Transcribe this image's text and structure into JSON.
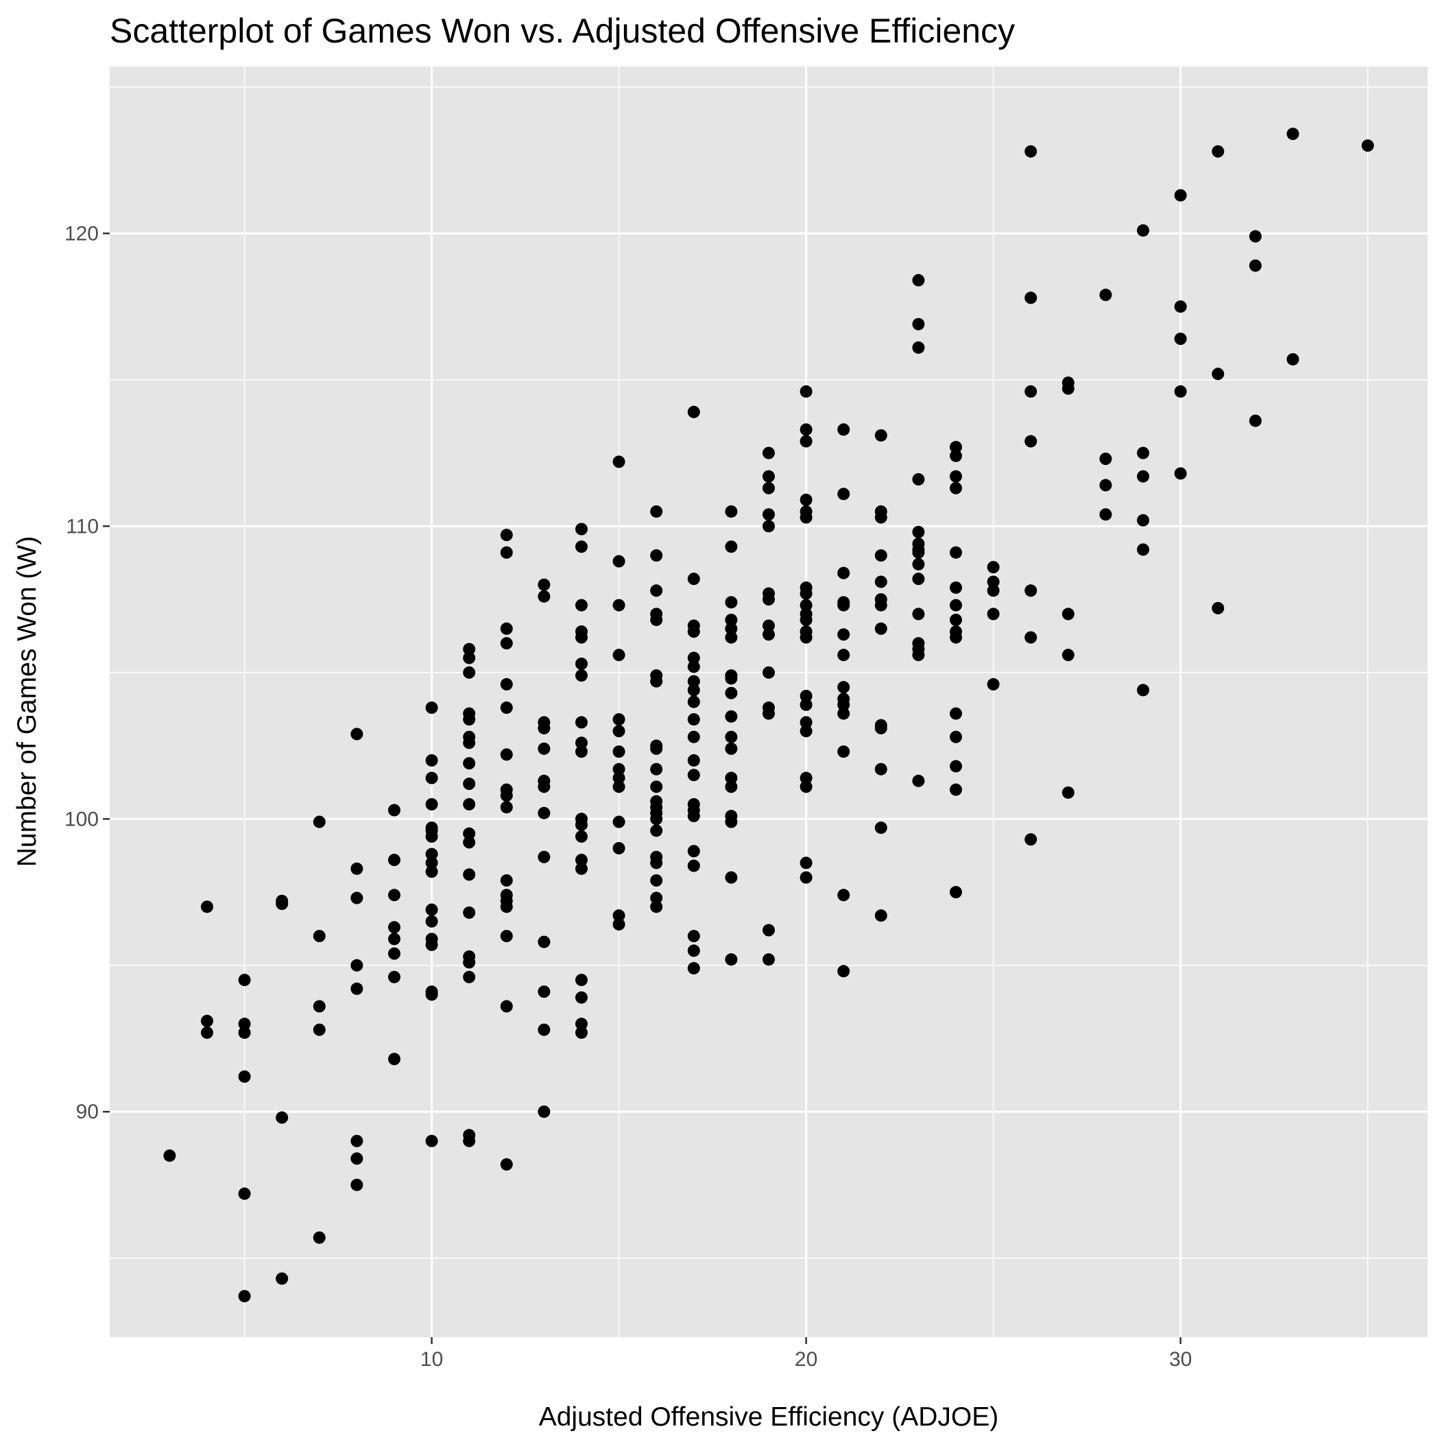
{
  "chart_data": {
    "type": "scatter",
    "title": "Scatterplot of Games Won vs. Adjusted Offensive Efficiency",
    "xlabel": "Adjusted Offensive Efficiency (ADJOE)",
    "ylabel": "Number of Games Won (W)",
    "xlim": [
      1.4,
      36.6
    ],
    "ylim": [
      82.3,
      125.7
    ],
    "x_ticks": [
      10,
      20,
      30
    ],
    "x_tick_labels": [
      "10",
      "20",
      "30"
    ],
    "y_ticks": [
      90,
      100,
      110,
      120
    ],
    "y_tick_labels": [
      "90",
      "100",
      "110",
      "120"
    ],
    "grid": true,
    "legend": "none",
    "colors": {
      "panel": "#e5e5e5",
      "grid": "#ffffff",
      "point": "#000000"
    },
    "points": [
      [
        3,
        88.5
      ],
      [
        4,
        97.0
      ],
      [
        4,
        93.1
      ],
      [
        4,
        92.7
      ],
      [
        5,
        94.5
      ],
      [
        5,
        93.0
      ],
      [
        5,
        92.7
      ],
      [
        5,
        91.2
      ],
      [
        5,
        87.2
      ],
      [
        5,
        83.7
      ],
      [
        6,
        97.2
      ],
      [
        6,
        97.1
      ],
      [
        6,
        89.8
      ],
      [
        6,
        84.3
      ],
      [
        7,
        99.9
      ],
      [
        7,
        96.0
      ],
      [
        7,
        93.6
      ],
      [
        7,
        92.8
      ],
      [
        7,
        85.7
      ],
      [
        8,
        102.9
      ],
      [
        8,
        98.3
      ],
      [
        8,
        97.3
      ],
      [
        8,
        95.0
      ],
      [
        8,
        94.2
      ],
      [
        8,
        89.0
      ],
      [
        8,
        88.4
      ],
      [
        8,
        87.5
      ],
      [
        9,
        100.3
      ],
      [
        9,
        98.6
      ],
      [
        9,
        97.4
      ],
      [
        9,
        96.3
      ],
      [
        9,
        95.9
      ],
      [
        9,
        95.4
      ],
      [
        9,
        94.6
      ],
      [
        9,
        91.8
      ],
      [
        10,
        103.8
      ],
      [
        10,
        102.0
      ],
      [
        10,
        101.4
      ],
      [
        10,
        100.5
      ],
      [
        10,
        99.7
      ],
      [
        10,
        99.6
      ],
      [
        10,
        99.4
      ],
      [
        10,
        98.8
      ],
      [
        10,
        98.5
      ],
      [
        10,
        98.2
      ],
      [
        10,
        96.9
      ],
      [
        10,
        96.5
      ],
      [
        10,
        95.9
      ],
      [
        10,
        95.7
      ],
      [
        10,
        94.1
      ],
      [
        10,
        94.0
      ],
      [
        10,
        89.0
      ],
      [
        11,
        105.8
      ],
      [
        11,
        105.5
      ],
      [
        11,
        105.0
      ],
      [
        11,
        103.6
      ],
      [
        11,
        103.4
      ],
      [
        11,
        102.8
      ],
      [
        11,
        102.6
      ],
      [
        11,
        101.9
      ],
      [
        11,
        101.2
      ],
      [
        11,
        100.5
      ],
      [
        11,
        99.5
      ],
      [
        11,
        99.2
      ],
      [
        11,
        98.1
      ],
      [
        11,
        96.8
      ],
      [
        11,
        95.3
      ],
      [
        11,
        95.1
      ],
      [
        11,
        94.6
      ],
      [
        11,
        89.2
      ],
      [
        11,
        89.0
      ],
      [
        12,
        109.7
      ],
      [
        12,
        109.1
      ],
      [
        12,
        106.5
      ],
      [
        12,
        106.0
      ],
      [
        12,
        104.6
      ],
      [
        12,
        103.8
      ],
      [
        12,
        102.2
      ],
      [
        12,
        101.0
      ],
      [
        12,
        100.8
      ],
      [
        12,
        100.4
      ],
      [
        12,
        97.9
      ],
      [
        12,
        97.4
      ],
      [
        12,
        97.2
      ],
      [
        12,
        97.0
      ],
      [
        12,
        96.0
      ],
      [
        12,
        93.6
      ],
      [
        12,
        88.2
      ],
      [
        13,
        108.0
      ],
      [
        13,
        107.6
      ],
      [
        13,
        103.3
      ],
      [
        13,
        103.1
      ],
      [
        13,
        102.4
      ],
      [
        13,
        101.3
      ],
      [
        13,
        101.1
      ],
      [
        13,
        100.2
      ],
      [
        13,
        98.7
      ],
      [
        13,
        95.8
      ],
      [
        13,
        94.1
      ],
      [
        13,
        92.8
      ],
      [
        13,
        90.0
      ],
      [
        14,
        109.9
      ],
      [
        14,
        109.3
      ],
      [
        14,
        107.3
      ],
      [
        14,
        106.4
      ],
      [
        14,
        106.2
      ],
      [
        14,
        105.3
      ],
      [
        14,
        104.9
      ],
      [
        14,
        103.3
      ],
      [
        14,
        102.6
      ],
      [
        14,
        102.3
      ],
      [
        14,
        100.0
      ],
      [
        14,
        99.8
      ],
      [
        14,
        99.4
      ],
      [
        14,
        98.6
      ],
      [
        14,
        98.3
      ],
      [
        14,
        94.5
      ],
      [
        14,
        93.9
      ],
      [
        14,
        93.0
      ],
      [
        14,
        92.7
      ],
      [
        15,
        112.2
      ],
      [
        15,
        108.8
      ],
      [
        15,
        107.3
      ],
      [
        15,
        105.6
      ],
      [
        15,
        103.4
      ],
      [
        15,
        103.0
      ],
      [
        15,
        102.3
      ],
      [
        15,
        101.7
      ],
      [
        15,
        101.4
      ],
      [
        15,
        101.1
      ],
      [
        15,
        99.9
      ],
      [
        15,
        99.0
      ],
      [
        15,
        96.7
      ],
      [
        15,
        96.4
      ],
      [
        16,
        110.5
      ],
      [
        16,
        109.0
      ],
      [
        16,
        107.8
      ],
      [
        16,
        107.0
      ],
      [
        16,
        106.8
      ],
      [
        16,
        104.9
      ],
      [
        16,
        104.7
      ],
      [
        16,
        102.5
      ],
      [
        16,
        102.4
      ],
      [
        16,
        101.7
      ],
      [
        16,
        101.1
      ],
      [
        16,
        100.6
      ],
      [
        16,
        100.4
      ],
      [
        16,
        100.2
      ],
      [
        16,
        100.0
      ],
      [
        16,
        99.6
      ],
      [
        16,
        98.7
      ],
      [
        16,
        98.5
      ],
      [
        16,
        97.9
      ],
      [
        16,
        97.3
      ],
      [
        16,
        97.0
      ],
      [
        17,
        113.9
      ],
      [
        17,
        108.2
      ],
      [
        17,
        106.6
      ],
      [
        17,
        106.4
      ],
      [
        17,
        105.5
      ],
      [
        17,
        105.2
      ],
      [
        17,
        104.7
      ],
      [
        17,
        104.4
      ],
      [
        17,
        104.0
      ],
      [
        17,
        103.4
      ],
      [
        17,
        102.8
      ],
      [
        17,
        102.0
      ],
      [
        17,
        101.5
      ],
      [
        17,
        100.5
      ],
      [
        17,
        100.3
      ],
      [
        17,
        100.1
      ],
      [
        17,
        98.9
      ],
      [
        17,
        98.4
      ],
      [
        17,
        96.0
      ],
      [
        17,
        95.5
      ],
      [
        17,
        94.9
      ],
      [
        18,
        110.5
      ],
      [
        18,
        109.3
      ],
      [
        18,
        107.4
      ],
      [
        18,
        106.8
      ],
      [
        18,
        106.5
      ],
      [
        18,
        106.2
      ],
      [
        18,
        104.9
      ],
      [
        18,
        104.8
      ],
      [
        18,
        104.3
      ],
      [
        18,
        103.5
      ],
      [
        18,
        102.8
      ],
      [
        18,
        102.4
      ],
      [
        18,
        101.4
      ],
      [
        18,
        101.1
      ],
      [
        18,
        100.1
      ],
      [
        18,
        99.9
      ],
      [
        18,
        98.0
      ],
      [
        18,
        95.2
      ],
      [
        19,
        112.5
      ],
      [
        19,
        111.7
      ],
      [
        19,
        111.3
      ],
      [
        19,
        110.4
      ],
      [
        19,
        110.0
      ],
      [
        19,
        107.7
      ],
      [
        19,
        107.5
      ],
      [
        19,
        106.6
      ],
      [
        19,
        106.3
      ],
      [
        19,
        105.0
      ],
      [
        19,
        103.8
      ],
      [
        19,
        103.6
      ],
      [
        19,
        96.2
      ],
      [
        19,
        95.2
      ],
      [
        20,
        114.6
      ],
      [
        20,
        113.3
      ],
      [
        20,
        112.9
      ],
      [
        20,
        110.9
      ],
      [
        20,
        110.5
      ],
      [
        20,
        110.3
      ],
      [
        20,
        107.9
      ],
      [
        20,
        107.7
      ],
      [
        20,
        107.3
      ],
      [
        20,
        107.0
      ],
      [
        20,
        106.8
      ],
      [
        20,
        106.4
      ],
      [
        20,
        106.2
      ],
      [
        20,
        104.2
      ],
      [
        20,
        103.9
      ],
      [
        20,
        103.3
      ],
      [
        20,
        103.0
      ],
      [
        20,
        101.4
      ],
      [
        20,
        101.1
      ],
      [
        20,
        98.5
      ],
      [
        20,
        98.0
      ],
      [
        21,
        113.3
      ],
      [
        21,
        111.1
      ],
      [
        21,
        108.4
      ],
      [
        21,
        107.4
      ],
      [
        21,
        107.3
      ],
      [
        21,
        106.3
      ],
      [
        21,
        105.6
      ],
      [
        21,
        104.5
      ],
      [
        21,
        104.1
      ],
      [
        21,
        103.9
      ],
      [
        21,
        103.6
      ],
      [
        21,
        102.3
      ],
      [
        21,
        97.4
      ],
      [
        21,
        94.8
      ],
      [
        22,
        113.1
      ],
      [
        22,
        110.5
      ],
      [
        22,
        110.3
      ],
      [
        22,
        109.0
      ],
      [
        22,
        108.1
      ],
      [
        22,
        107.5
      ],
      [
        22,
        107.3
      ],
      [
        22,
        106.5
      ],
      [
        22,
        103.2
      ],
      [
        22,
        103.1
      ],
      [
        22,
        101.7
      ],
      [
        22,
        99.7
      ],
      [
        22,
        96.7
      ],
      [
        23,
        118.4
      ],
      [
        23,
        116.9
      ],
      [
        23,
        116.1
      ],
      [
        23,
        111.6
      ],
      [
        23,
        109.8
      ],
      [
        23,
        109.4
      ],
      [
        23,
        109.2
      ],
      [
        23,
        109.1
      ],
      [
        23,
        108.7
      ],
      [
        23,
        108.2
      ],
      [
        23,
        107.0
      ],
      [
        23,
        106.0
      ],
      [
        23,
        105.8
      ],
      [
        23,
        105.6
      ],
      [
        23,
        101.3
      ],
      [
        24,
        112.7
      ],
      [
        24,
        112.4
      ],
      [
        24,
        111.7
      ],
      [
        24,
        111.3
      ],
      [
        24,
        109.1
      ],
      [
        24,
        107.9
      ],
      [
        24,
        107.3
      ],
      [
        24,
        106.8
      ],
      [
        24,
        106.4
      ],
      [
        24,
        106.2
      ],
      [
        24,
        103.6
      ],
      [
        24,
        102.8
      ],
      [
        24,
        101.8
      ],
      [
        24,
        101.0
      ],
      [
        24,
        97.5
      ],
      [
        25,
        108.6
      ],
      [
        25,
        108.1
      ],
      [
        25,
        107.8
      ],
      [
        25,
        107.0
      ],
      [
        25,
        104.6
      ],
      [
        26,
        122.8
      ],
      [
        26,
        117.8
      ],
      [
        26,
        114.6
      ],
      [
        26,
        112.9
      ],
      [
        26,
        107.8
      ],
      [
        26,
        106.2
      ],
      [
        26,
        99.3
      ],
      [
        27,
        114.9
      ],
      [
        27,
        114.7
      ],
      [
        27,
        107.0
      ],
      [
        27,
        105.6
      ],
      [
        27,
        100.9
      ],
      [
        28,
        117.9
      ],
      [
        28,
        112.3
      ],
      [
        28,
        111.4
      ],
      [
        28,
        110.4
      ],
      [
        29,
        120.1
      ],
      [
        29,
        112.5
      ],
      [
        29,
        111.7
      ],
      [
        29,
        110.2
      ],
      [
        29,
        109.2
      ],
      [
        29,
        104.4
      ],
      [
        30,
        121.3
      ],
      [
        30,
        117.5
      ],
      [
        30,
        116.4
      ],
      [
        30,
        114.6
      ],
      [
        30,
        111.8
      ],
      [
        31,
        122.8
      ],
      [
        31,
        115.2
      ],
      [
        31,
        107.2
      ],
      [
        32,
        119.9
      ],
      [
        32,
        118.9
      ],
      [
        32,
        113.6
      ],
      [
        33,
        123.4
      ],
      [
        33,
        115.7
      ],
      [
        35,
        123.0
      ]
    ]
  }
}
